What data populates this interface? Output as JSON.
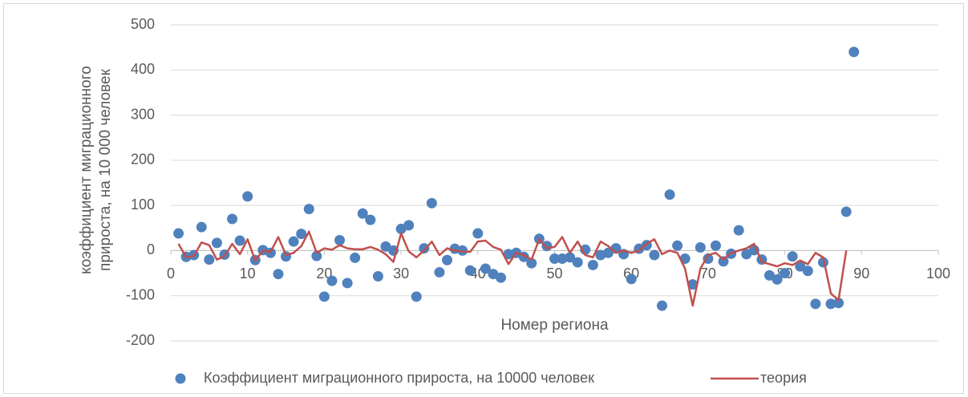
{
  "chart_data": {
    "type": "scatter",
    "x_label": "Номер региона",
    "y_label": "коэффициент миграционного прироста, на 10 000 человек",
    "xlim": [
      0,
      100
    ],
    "xticks": [
      0,
      10,
      20,
      30,
      40,
      50,
      60,
      70,
      80,
      90,
      100
    ],
    "ylim": [
      -200,
      500
    ],
    "yticks": [
      -200,
      -100,
      0,
      100,
      200,
      300,
      400,
      500
    ],
    "grid": true,
    "legend": "bottom",
    "series": [
      {
        "name": "Коэффициент миграционного прироста, на 10000 человек",
        "type": "scatter",
        "color": "#4f81bd",
        "x": [
          1,
          2,
          3,
          4,
          5,
          6,
          7,
          8,
          9,
          10,
          11,
          12,
          13,
          14,
          15,
          16,
          17,
          18,
          19,
          20,
          21,
          22,
          23,
          24,
          25,
          26,
          27,
          28,
          29,
          30,
          31,
          32,
          33,
          34,
          35,
          36,
          37,
          38,
          39,
          40,
          41,
          42,
          43,
          44,
          45,
          46,
          47,
          48,
          49,
          50,
          51,
          52,
          53,
          54,
          55,
          56,
          57,
          58,
          59,
          60,
          61,
          62,
          63,
          64,
          65,
          66,
          67,
          68,
          69,
          70,
          71,
          72,
          73,
          74,
          75,
          76,
          77,
          78,
          79,
          80,
          81,
          82,
          83,
          84,
          85,
          86,
          87,
          88,
          89
        ],
        "values": [
          38,
          -14,
          -10,
          52,
          -20,
          17,
          -9,
          70,
          22,
          120,
          -21,
          1,
          -5,
          -52,
          -13,
          20,
          37,
          92,
          -12,
          -102,
          -67,
          23,
          -72,
          -16,
          82,
          68,
          -57,
          9,
          0,
          48,
          56,
          -102,
          5,
          105,
          -48,
          -21,
          4,
          0,
          -44,
          38,
          -40,
          -52,
          -60,
          -8,
          -5,
          -14,
          -28,
          26,
          10,
          -18,
          -18,
          -15,
          -26,
          2,
          -32,
          -10,
          -5,
          5,
          -8,
          -63,
          4,
          12,
          -10,
          -122,
          124,
          11,
          -18,
          -75,
          7,
          -18,
          11,
          -24,
          -7,
          45,
          -8,
          1,
          -20,
          -55,
          -64,
          -50,
          -13,
          -35,
          -45,
          -118,
          -26,
          -118,
          -116,
          86,
          440
        ]
      },
      {
        "name": "теория",
        "type": "line",
        "color": "#c0504d",
        "x": [
          1,
          2,
          3,
          4,
          5,
          6,
          7,
          8,
          9,
          10,
          11,
          12,
          13,
          14,
          15,
          16,
          17,
          18,
          19,
          20,
          21,
          22,
          23,
          24,
          25,
          26,
          27,
          28,
          29,
          30,
          31,
          32,
          33,
          34,
          35,
          36,
          37,
          38,
          39,
          40,
          41,
          42,
          43,
          44,
          45,
          46,
          47,
          48,
          49,
          50,
          51,
          52,
          53,
          54,
          55,
          56,
          57,
          58,
          59,
          60,
          61,
          62,
          63,
          64,
          65,
          66,
          67,
          68,
          69,
          70,
          71,
          72,
          73,
          74,
          75,
          76,
          77,
          78,
          79,
          80,
          81,
          82,
          83,
          84,
          85,
          86,
          87,
          88
        ],
        "values": [
          15,
          -15,
          -12,
          18,
          12,
          -20,
          -12,
          15,
          -8,
          25,
          -22,
          0,
          -3,
          30,
          -10,
          -5,
          10,
          42,
          -5,
          5,
          2,
          12,
          5,
          3,
          3,
          8,
          2,
          -8,
          -25,
          38,
          -2,
          -15,
          0,
          20,
          -10,
          5,
          0,
          -2,
          -3,
          20,
          22,
          8,
          2,
          -30,
          -5,
          -10,
          -20,
          25,
          5,
          8,
          30,
          -5,
          20,
          -10,
          -15,
          20,
          10,
          -5,
          0,
          -5,
          0,
          15,
          25,
          -8,
          0,
          -5,
          -40,
          -122,
          -40,
          -10,
          -5,
          -20,
          -5,
          0,
          5,
          15,
          -25,
          -30,
          -35,
          -28,
          -32,
          -22,
          -30,
          -5,
          -15,
          -95,
          -110,
          0
        ]
      }
    ]
  }
}
